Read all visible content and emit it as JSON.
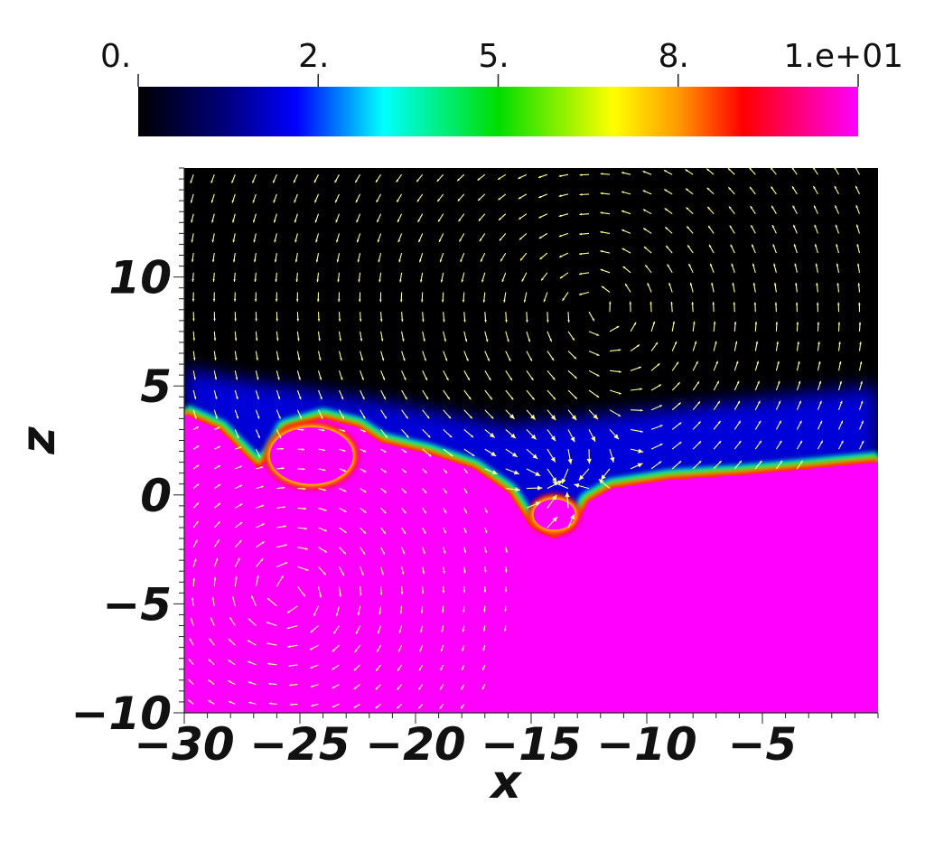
{
  "chart_data": {
    "type": "heatmap",
    "title": "",
    "xlabel": "x",
    "ylabel": "z",
    "xlim": [
      -30,
      0
    ],
    "ylim": [
      -10,
      15
    ],
    "x_ticks": [
      -30,
      -25,
      -20,
      -15,
      -10,
      -5
    ],
    "x_tick_labels": [
      "−30",
      "−25",
      "−20",
      "−15",
      "−10",
      "−5"
    ],
    "y_ticks": [
      -10,
      -5,
      0,
      5,
      10
    ],
    "y_tick_labels": [
      "−10",
      "−5",
      "0",
      "5",
      "10"
    ],
    "colorbar": {
      "range": [
        0,
        10
      ],
      "ticks": [
        0,
        2.5,
        5,
        7.5,
        10
      ],
      "tick_labels": [
        "0.",
        "2.",
        "5.",
        "8.",
        "1.e+01"
      ],
      "colormap_stops": [
        {
          "value": 0.0,
          "color": "#000000"
        },
        {
          "value": 1.25,
          "color": "#000080"
        },
        {
          "value": 2.2,
          "color": "#0000ff"
        },
        {
          "value": 3.4,
          "color": "#00ffff"
        },
        {
          "value": 5.0,
          "color": "#00dd00"
        },
        {
          "value": 6.6,
          "color": "#ffff00"
        },
        {
          "value": 7.5,
          "color": "#ff9900"
        },
        {
          "value": 8.4,
          "color": "#ff0000"
        },
        {
          "value": 10.0,
          "color": "#ff00ff"
        }
      ]
    },
    "regions": {
      "upper_fluid_value": 0,
      "lower_fluid_value": 10,
      "interface_profile": [
        {
          "x": -30,
          "z": 3.7
        },
        {
          "x": -28.5,
          "z": 3.0
        },
        {
          "x": -27.2,
          "z": 1.6
        },
        {
          "x": -26.8,
          "z": 1.2
        },
        {
          "x": -26.2,
          "z": 1.8
        },
        {
          "x": -25.6,
          "z": 3.0
        },
        {
          "x": -24.0,
          "z": 3.5
        },
        {
          "x": -22.5,
          "z": 3.1
        },
        {
          "x": -21.5,
          "z": 2.4
        },
        {
          "x": -19.5,
          "z": 1.9
        },
        {
          "x": -17.5,
          "z": 1.2
        },
        {
          "x": -16.0,
          "z": 0.1
        },
        {
          "x": -15.0,
          "z": -1.5
        },
        {
          "x": -14.0,
          "z": -2.0
        },
        {
          "x": -13.2,
          "z": -1.6
        },
        {
          "x": -12.5,
          "z": -0.3
        },
        {
          "x": -11.5,
          "z": 0.3
        },
        {
          "x": -9.0,
          "z": 0.7
        },
        {
          "x": -6.0,
          "z": 0.9
        },
        {
          "x": -3.0,
          "z": 1.2
        },
        {
          "x": 0,
          "z": 1.5
        }
      ],
      "bubbles": [
        {
          "name": "left bubble",
          "cx": -24.5,
          "cz": 1.8,
          "rx": 1.8,
          "rz": 1.3
        },
        {
          "name": "trough bubble",
          "cx": -14.0,
          "cz": -0.9,
          "rx": 0.9,
          "rz": 0.7
        }
      ]
    },
    "vector_field": {
      "color": "#ffff99",
      "vortices": [
        {
          "name": "upper vortex",
          "x": -12.5,
          "z": 8.5,
          "rotation": "counterclockwise"
        },
        {
          "name": "lower vortex",
          "x": -25.5,
          "z": -4.5,
          "rotation": "clockwise"
        }
      ],
      "jet": {
        "x": -14.0,
        "z": 0.5,
        "direction": "downward into trough"
      }
    },
    "grid": false,
    "legend": "colorbar on top"
  }
}
